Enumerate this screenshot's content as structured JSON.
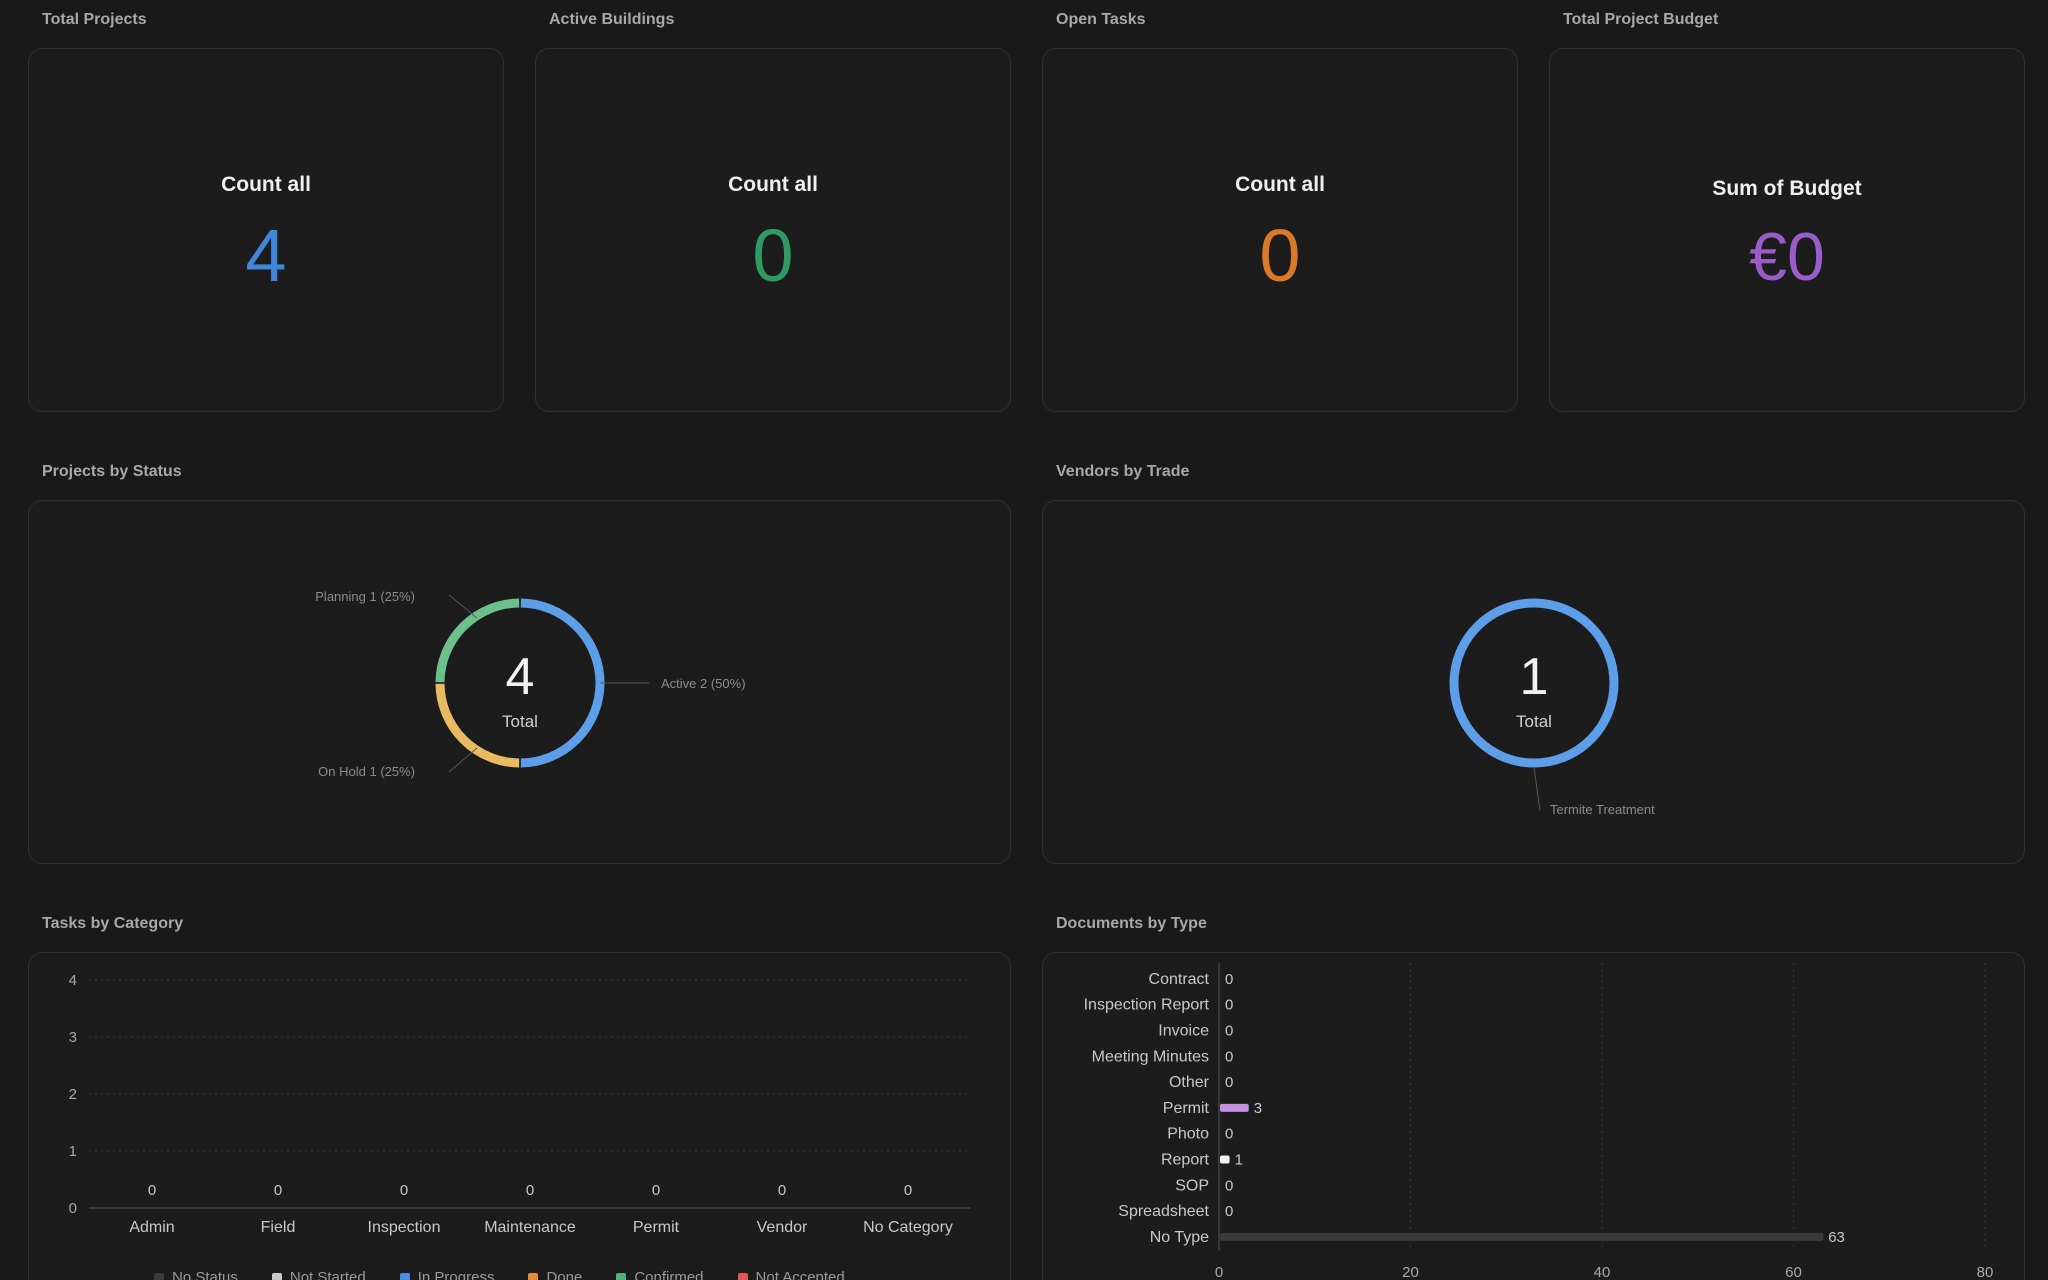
{
  "kpis": [
    {
      "title": "Total Projects",
      "label": "Count all",
      "value": "4",
      "color": "#3f86d8"
    },
    {
      "title": "Active Buildings",
      "label": "Count all",
      "value": "0",
      "color": "#2f9a62"
    },
    {
      "title": "Open Tasks",
      "label": "Count all",
      "value": "0",
      "color": "#d87a28"
    },
    {
      "title": "Total Project Budget",
      "label": "Sum of Budget",
      "value": "€0",
      "color": "#9a5cc8"
    }
  ],
  "projects_by_status": {
    "title": "Projects by Status",
    "center_value": "4",
    "center_label": "Total",
    "slices": [
      {
        "name": "Active",
        "value": 2,
        "label": "Active  2 (50%)",
        "color": "#5d9ee8"
      },
      {
        "name": "On Hold",
        "value": 1,
        "label": "On Hold  1 (25%)",
        "color": "#e8bb62"
      },
      {
        "name": "Planning",
        "value": 1,
        "label": "Planning  1 (25%)",
        "color": "#6cc08c"
      }
    ]
  },
  "vendors_by_trade": {
    "title": "Vendors by Trade",
    "center_value": "1",
    "center_label": "Total",
    "slices": [
      {
        "name": "Termite Treatment",
        "value": 1,
        "label": "Termite Treatment",
        "color": "#5d9ee8"
      }
    ]
  },
  "tasks_by_category": {
    "title": "Tasks by Category",
    "legend": [
      {
        "label": "No Status",
        "color": "#3a3a3a"
      },
      {
        "label": "Not Started",
        "color": "#c8c8c8"
      },
      {
        "label": "In Progress",
        "color": "#4b8fe0"
      },
      {
        "label": "Done",
        "color": "#e08a3a"
      },
      {
        "label": "Confirmed",
        "color": "#52b078"
      },
      {
        "label": "Not Accepted",
        "color": "#e0585a"
      }
    ]
  },
  "documents_by_type": {
    "title": "Documents by Type"
  },
  "chart_data": [
    {
      "type": "pie",
      "title": "Projects by Status",
      "categories": [
        "Active",
        "On Hold",
        "Planning"
      ],
      "values": [
        2,
        1,
        1
      ],
      "total": 4
    },
    {
      "type": "pie",
      "title": "Vendors by Trade",
      "categories": [
        "Termite Treatment"
      ],
      "values": [
        1
      ],
      "total": 1
    },
    {
      "type": "bar",
      "title": "Tasks by Category",
      "categories": [
        "Admin",
        "Field",
        "Inspection",
        "Maintenance",
        "Permit",
        "Vendor",
        "No Category"
      ],
      "values": [
        0,
        0,
        0,
        0,
        0,
        0,
        0
      ],
      "yticks": [
        0,
        1,
        2,
        3,
        4
      ],
      "ylim": [
        0,
        4
      ],
      "grid": true
    },
    {
      "type": "bar",
      "orientation": "horizontal",
      "title": "Documents by Type",
      "categories": [
        "Contract",
        "Inspection Report",
        "Invoice",
        "Meeting Minutes",
        "Other",
        "Permit",
        "Photo",
        "Report",
        "SOP",
        "Spreadsheet",
        "No Type"
      ],
      "values": [
        0,
        0,
        0,
        0,
        0,
        3,
        0,
        1,
        0,
        0,
        63
      ],
      "colors": {
        "Permit": "#c490e0",
        "Report": "#f0f0f0",
        "No Type": "#3a3a3a"
      },
      "xticks": [
        0,
        20,
        40,
        60,
        80
      ],
      "xlim": [
        0,
        80
      ],
      "grid": true
    }
  ]
}
